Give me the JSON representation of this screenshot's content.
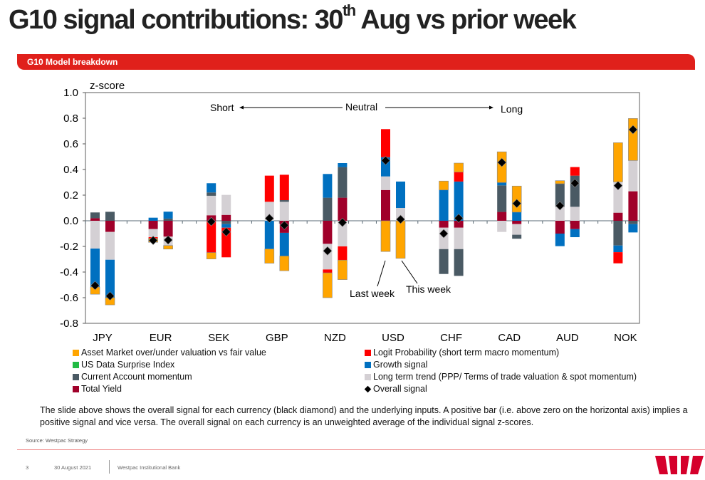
{
  "slide": {
    "title_main": "G10 signal contributions: 30",
    "title_sup": "th",
    "title_rest": " Aug vs prior week",
    "banner": "G10 Model breakdown",
    "description": "The slide above shows the overall signal for each currency (black diamond) and the underlying inputs. A positive bar (i.e. above zero on the horizontal axis) implies a positive signal and vice versa. The overall signal on each currency is an unweighted average of the individual signal z-scores.",
    "source": "Source: Westpac Strategy",
    "page": "3",
    "date": "30 August 2021",
    "company": "Westpac Institutional Bank",
    "logo_text": "W"
  },
  "chart_data": {
    "type": "bar",
    "stacked": true,
    "ylabel": "z-score",
    "ylim": [
      -0.8,
      1.0
    ],
    "yticks": [
      "1.0",
      "0.8",
      "0.6",
      "0.4",
      "0.2",
      "0.0",
      "-0.2",
      "-0.4",
      "-0.6",
      "-0.8"
    ],
    "annotations": {
      "short": "Short",
      "neutral": "Neutral",
      "long": "Long",
      "last_week": "Last week",
      "this_week": "This week"
    },
    "categories": [
      "JPY",
      "EUR",
      "SEK",
      "GBP",
      "NZD",
      "USD",
      "CHF",
      "CAD",
      "AUD",
      "NOK"
    ],
    "series_keys": [
      "yield",
      "trend",
      "ca",
      "growth",
      "logit",
      "asset",
      "surprise"
    ],
    "legend": [
      {
        "key": "asset",
        "label": "Asset Market over/under valuation vs fair value",
        "color": "#ffa500"
      },
      {
        "key": "logit",
        "label": "Logit Probability (short term macro momentum)",
        "color": "#ff0000"
      },
      {
        "key": "surprise",
        "label": "US Data Surprise Index",
        "color": "#22bb44"
      },
      {
        "key": "growth",
        "label": "Growth signal",
        "color": "#0070c0"
      },
      {
        "key": "ca",
        "label": "Current Account momentum",
        "color": "#4a5a64"
      },
      {
        "key": "trend",
        "label": "Long term trend (PPP/ Terms of trade valuation & spot momentum)",
        "color": "#d4d0d4"
      },
      {
        "key": "yield",
        "label": "Total Yield",
        "color": "#a0002a"
      },
      {
        "key": "overall",
        "label": "Overall signal",
        "color": "#000000"
      }
    ],
    "bars": [
      {
        "ccy": "JPY",
        "week": "last",
        "pos": {
          "yield": 0.02,
          "ca": 0.045
        },
        "neg": {
          "trend": -0.217,
          "growth": -0.3,
          "asset": -0.056
        },
        "overall": -0.505
      },
      {
        "ccy": "JPY",
        "week": "this",
        "pos": {
          "ca": 0.07
        },
        "neg": {
          "yield": -0.087,
          "trend": -0.217,
          "growth": -0.296,
          "asset": -0.056
        },
        "overall": -0.587
      },
      {
        "ccy": "EUR",
        "week": "last",
        "pos": {
          "growth": 0.024
        },
        "neg": {
          "yield": -0.065,
          "trend": -0.063,
          "logit": -0.01,
          "asset": -0.03
        },
        "overall": -0.153
      },
      {
        "ccy": "EUR",
        "week": "this",
        "pos": {
          "ca": 0.017,
          "growth": 0.054
        },
        "neg": {
          "yield": -0.124,
          "trend": -0.069,
          "asset": -0.028
        },
        "overall": -0.15
      },
      {
        "ccy": "SEK",
        "week": "last",
        "pos": {
          "yield": 0.043,
          "trend": 0.152,
          "ca": 0.026,
          "growth": 0.072
        },
        "neg": {
          "logit": -0.248,
          "asset": -0.05
        },
        "overall": -0.007
      },
      {
        "ccy": "SEK",
        "week": "this",
        "pos": {
          "yield": 0.046,
          "trend": 0.156
        },
        "neg": {
          "ca": -0.026,
          "growth": -0.028,
          "logit": -0.231
        },
        "overall": -0.087
      },
      {
        "ccy": "GBP",
        "week": "last",
        "pos": {
          "trend": 0.148,
          "logit": 0.204
        },
        "neg": {
          "growth": -0.22,
          "asset": -0.111
        },
        "overall": 0.019
      },
      {
        "ccy": "GBP",
        "week": "this",
        "pos": {
          "trend": 0.148,
          "ca": 0.013,
          "logit": 0.198
        },
        "neg": {
          "yield": -0.094,
          "growth": -0.181,
          "asset": -0.115
        },
        "overall": -0.035
      },
      {
        "ccy": "NZD",
        "week": "last",
        "pos": {
          "ca": 0.18,
          "growth": 0.185
        },
        "neg": {
          "yield": -0.18,
          "trend": -0.2,
          "logit": -0.026,
          "asset": -0.194
        },
        "overall": -0.235
      },
      {
        "ccy": "NZD",
        "week": "this",
        "pos": {
          "yield": 0.18,
          "ca": 0.239,
          "growth": 0.031
        },
        "neg": {
          "trend": -0.2,
          "logit": -0.107,
          "asset": -0.152
        },
        "overall": -0.013
      },
      {
        "ccy": "USD",
        "week": "last",
        "pos": {
          "yield": 0.24,
          "trend": 0.106,
          "growth": 0.15,
          "logit": 0.219
        },
        "neg": {
          "asset": -0.24
        },
        "overall": 0.47
      },
      {
        "ccy": "USD",
        "week": "this",
        "pos": {
          "trend": 0.1,
          "growth": 0.206
        },
        "neg": {
          "asset": -0.293
        },
        "overall": 0.011
      },
      {
        "ccy": "CHF",
        "week": "last",
        "pos": {
          "growth": 0.24,
          "asset": 0.07
        },
        "neg": {
          "yield": -0.054,
          "trend": -0.167,
          "ca": -0.194
        },
        "overall": -0.1
      },
      {
        "ccy": "CHF",
        "week": "this",
        "pos": {
          "growth": 0.306,
          "logit": 0.074,
          "asset": 0.07
        },
        "neg": {
          "yield": -0.054,
          "trend": -0.167,
          "ca": -0.209
        },
        "overall": 0.02
      },
      {
        "ccy": "CAD",
        "week": "last",
        "pos": {
          "yield": 0.069,
          "ca": 0.207,
          "growth": 0.022,
          "asset": 0.24
        },
        "neg": {
          "trend": -0.087
        },
        "overall": 0.455
      },
      {
        "ccy": "CAD",
        "week": "this",
        "pos": {
          "growth": 0.067,
          "asset": 0.204
        },
        "neg": {
          "yield": -0.026,
          "trend": -0.083,
          "ca": -0.031
        },
        "overall": 0.135
      },
      {
        "ccy": "AUD",
        "week": "last",
        "pos": {
          "trend": 0.109,
          "ca": 0.18,
          "asset": 0.024
        },
        "neg": {
          "yield": -0.1,
          "growth": -0.098
        },
        "overall": 0.117
      },
      {
        "ccy": "AUD",
        "week": "this",
        "pos": {
          "trend": 0.109,
          "ca": 0.243,
          "logit": 0.067
        },
        "neg": {
          "yield": -0.065,
          "growth": -0.063
        },
        "overall": 0.293
      },
      {
        "ccy": "NOK",
        "week": "last",
        "pos": {
          "yield": 0.063,
          "trend": 0.24,
          "asset": 0.306
        },
        "neg": {
          "ca": -0.193,
          "growth": -0.052,
          "logit": -0.087
        },
        "overall": 0.274
      },
      {
        "ccy": "NOK",
        "week": "this",
        "pos": {
          "yield": 0.23,
          "trend": 0.24,
          "asset": 0.328
        },
        "neg": {
          "ca": -0.026,
          "growth": -0.065
        },
        "overall": 0.711
      }
    ]
  }
}
